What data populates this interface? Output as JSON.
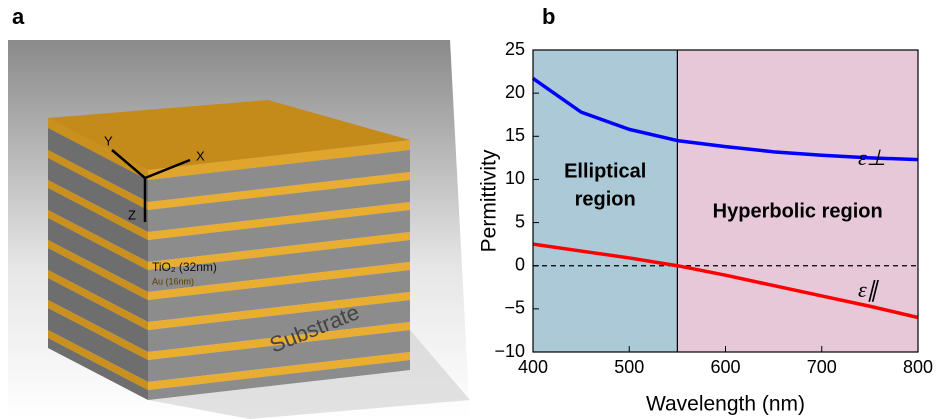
{
  "panel_a": {
    "label": "a",
    "layer_top": "TiO₂ (32nm)",
    "layer_bottom": "Au (16nm)",
    "axis_x": "X",
    "axis_y": "Y",
    "axis_z": "Z",
    "substrate": "Substrate"
  },
  "chart_data": {
    "type": "line",
    "panel_label": "b",
    "x_label": "Wavelength (nm)",
    "y_label": "Permittivity",
    "x": [
      400,
      450,
      500,
      550,
      600,
      650,
      700,
      750,
      800
    ],
    "series": [
      {
        "name": "ε⊥",
        "color": "#0000ff",
        "values": [
          21.7,
          17.8,
          15.8,
          14.5,
          13.8,
          13.2,
          12.8,
          12.5,
          12.3
        ]
      },
      {
        "name": "ε∥",
        "color": "#ff0000",
        "values": [
          2.5,
          1.7,
          0.9,
          0,
          -1.1,
          -2.3,
          -3.5,
          -4.7,
          -6.0
        ]
      }
    ],
    "xlim": [
      400,
      800
    ],
    "ylim": [
      -10,
      25
    ],
    "xticks": [
      400,
      500,
      600,
      700,
      800
    ],
    "yticks": [
      {
        "value": -10,
        "label": "−10"
      },
      {
        "value": -5,
        "label": "−5"
      },
      0,
      5,
      10,
      15,
      20,
      25
    ],
    "reference_line": 0,
    "region_boundary": 550,
    "regions": [
      {
        "lines": [
          "Elliptical",
          "region"
        ],
        "color": "#abc9d6"
      },
      {
        "lines": [
          "Hyperbolic region"
        ],
        "color": "#e6c8d9"
      }
    ]
  }
}
